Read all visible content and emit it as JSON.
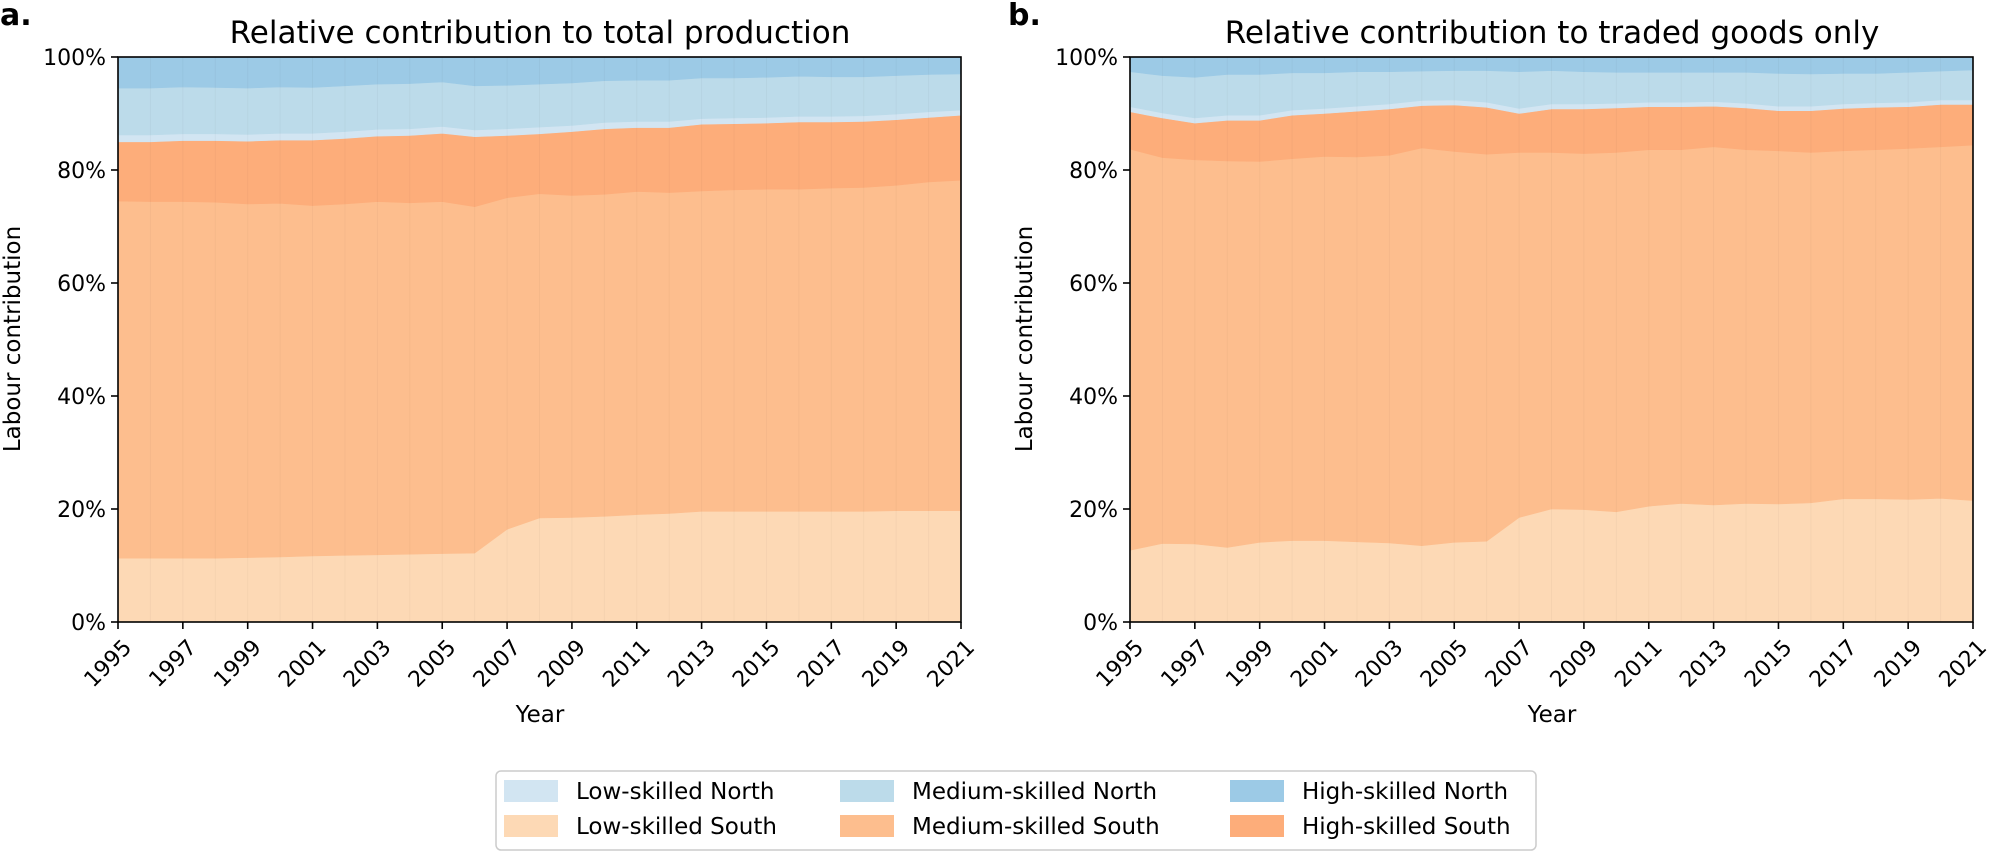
{
  "chart_data": [
    {
      "type": "area",
      "stacked": true,
      "panel_label": "a.",
      "title": "Relative contribution to total production",
      "xlabel": "Year",
      "ylabel": "Labour contribution",
      "xlim": [
        1995,
        2021
      ],
      "ylim": [
        0,
        100
      ],
      "y_unit": "%",
      "x_ticks": [
        "1995",
        "1997",
        "1999",
        "2001",
        "2003",
        "2005",
        "2007",
        "2009",
        "2011",
        "2013",
        "2015",
        "2017",
        "2019",
        "2021"
      ],
      "y_ticks": [
        "0%",
        "20%",
        "40%",
        "60%",
        "80%",
        "100%"
      ],
      "grid": false,
      "x": [
        1995,
        1996,
        1997,
        1998,
        1999,
        2000,
        2001,
        2002,
        2003,
        2004,
        2005,
        2006,
        2007,
        2008,
        2009,
        2010,
        2011,
        2012,
        2013,
        2014,
        2015,
        2016,
        2017,
        2018,
        2019,
        2020,
        2021
      ],
      "series": [
        {
          "name": "Low-skilled South",
          "color": "#fdd9b5",
          "values": [
            11.3,
            11.3,
            11.3,
            11.3,
            11.4,
            11.5,
            11.7,
            11.8,
            11.9,
            12.0,
            12.1,
            12.2,
            16.4,
            18.4,
            18.5,
            18.7,
            19.0,
            19.2,
            19.6,
            19.6,
            19.6,
            19.6,
            19.6,
            19.6,
            19.7,
            19.7,
            19.7
          ]
        },
        {
          "name": "Medium-skilled South",
          "color": "#fdbe8e",
          "values": [
            63.2,
            63.1,
            63.1,
            63.0,
            62.6,
            62.6,
            62.0,
            62.2,
            62.5,
            62.2,
            62.3,
            61.3,
            58.7,
            57.4,
            57.0,
            57.0,
            57.2,
            56.8,
            56.7,
            56.9,
            57.0,
            57.0,
            57.2,
            57.3,
            57.6,
            58.2,
            58.5
          ]
        },
        {
          "name": "High-skilled South",
          "color": "#fdad7a",
          "values": [
            10.5,
            10.6,
            10.8,
            10.9,
            11.1,
            11.2,
            11.6,
            11.6,
            11.6,
            11.9,
            12.1,
            12.4,
            11.0,
            10.6,
            11.3,
            11.6,
            11.3,
            11.5,
            11.8,
            11.7,
            11.7,
            11.9,
            11.7,
            11.7,
            11.6,
            11.4,
            11.5
          ]
        },
        {
          "name": "Low-skilled North",
          "color": "#d2e5f2",
          "values": [
            1.2,
            1.2,
            1.2,
            1.2,
            1.2,
            1.2,
            1.2,
            1.2,
            1.2,
            1.2,
            1.2,
            1.2,
            1.2,
            1.2,
            1.1,
            1.1,
            1.1,
            1.1,
            1.0,
            1.0,
            1.0,
            1.0,
            1.0,
            1.0,
            1.0,
            1.0,
            0.9
          ]
        },
        {
          "name": "Medium-skilled North",
          "color": "#bcdbea",
          "values": [
            8.3,
            8.3,
            8.3,
            8.2,
            8.2,
            8.2,
            8.1,
            8.1,
            8.0,
            8.0,
            7.9,
            7.8,
            7.7,
            7.6,
            7.5,
            7.4,
            7.3,
            7.3,
            7.2,
            7.1,
            7.1,
            7.1,
            7.0,
            6.9,
            6.8,
            6.6,
            6.4
          ]
        },
        {
          "name": "High-skilled North",
          "color": "#9ccae6",
          "values": [
            5.5,
            5.5,
            5.3,
            5.4,
            5.5,
            5.3,
            5.4,
            5.1,
            4.8,
            4.7,
            4.4,
            5.1,
            5.0,
            4.8,
            4.6,
            4.2,
            4.1,
            4.1,
            3.7,
            3.7,
            3.6,
            3.4,
            3.5,
            3.5,
            3.3,
            3.1,
            3.0
          ]
        }
      ]
    },
    {
      "type": "area",
      "stacked": true,
      "panel_label": "b.",
      "title": "Relative contribution to traded goods only",
      "xlabel": "Year",
      "ylabel": "Labour contribution",
      "xlim": [
        1995,
        2021
      ],
      "ylim": [
        0,
        100
      ],
      "y_unit": "%",
      "x_ticks": [
        "1995",
        "1997",
        "1999",
        "2001",
        "2003",
        "2005",
        "2007",
        "2009",
        "2011",
        "2013",
        "2015",
        "2017",
        "2019",
        "2021"
      ],
      "y_ticks": [
        "0%",
        "20%",
        "40%",
        "60%",
        "80%",
        "100%"
      ],
      "grid": false,
      "x": [
        1995,
        1996,
        1997,
        1998,
        1999,
        2000,
        2001,
        2002,
        2003,
        2004,
        2005,
        2006,
        2007,
        2008,
        2009,
        2010,
        2011,
        2012,
        2013,
        2014,
        2015,
        2016,
        2017,
        2018,
        2019,
        2020,
        2021
      ],
      "series": [
        {
          "name": "Low-skilled South",
          "color": "#fdd9b5",
          "values": [
            12.7,
            13.9,
            13.8,
            13.2,
            14.1,
            14.4,
            14.4,
            14.2,
            14.0,
            13.5,
            14.1,
            14.3,
            18.5,
            20.0,
            19.9,
            19.5,
            20.5,
            21.0,
            20.7,
            21.0,
            20.9,
            21.1,
            21.8,
            21.8,
            21.7,
            21.9,
            21.5
          ]
        },
        {
          "name": "Medium-skilled South",
          "color": "#fdbe8e",
          "values": [
            71.0,
            68.3,
            68.0,
            68.4,
            67.4,
            67.6,
            68.0,
            68.1,
            68.6,
            70.4,
            69.2,
            68.5,
            64.6,
            63.1,
            63.0,
            63.6,
            63.1,
            62.6,
            63.4,
            62.6,
            62.5,
            62.0,
            61.6,
            61.8,
            62.1,
            62.2,
            62.9
          ]
        },
        {
          "name": "High-skilled South",
          "color": "#fdad7a",
          "values": [
            6.6,
            7.0,
            6.5,
            7.2,
            7.3,
            7.7,
            7.6,
            8.1,
            8.2,
            7.5,
            8.2,
            8.3,
            6.9,
            7.7,
            7.9,
            7.9,
            7.6,
            7.6,
            7.2,
            7.4,
            7.1,
            7.4,
            7.5,
            7.5,
            7.4,
            7.5,
            7.2
          ]
        },
        {
          "name": "Low-skilled North",
          "color": "#d2e5f2",
          "values": [
            0.9,
            0.9,
            0.9,
            0.9,
            0.9,
            0.9,
            0.9,
            0.9,
            0.9,
            0.9,
            0.9,
            0.9,
            0.9,
            0.9,
            0.9,
            0.8,
            0.8,
            0.8,
            0.8,
            0.8,
            0.8,
            0.8,
            0.8,
            0.8,
            0.8,
            0.8,
            0.8
          ]
        },
        {
          "name": "Medium-skilled North",
          "color": "#bcdbea",
          "values": [
            6.2,
            6.6,
            7.2,
            7.2,
            7.2,
            6.6,
            6.3,
            6.1,
            5.7,
            5.2,
            5.2,
            5.6,
            6.5,
            5.9,
            5.7,
            5.5,
            5.3,
            5.3,
            5.2,
            5.5,
            5.8,
            5.7,
            5.4,
            5.2,
            5.3,
            5.1,
            5.3
          ]
        },
        {
          "name": "High-skilled North",
          "color": "#9ccae6",
          "values": [
            2.6,
            3.3,
            3.6,
            3.1,
            3.1,
            2.8,
            2.8,
            2.6,
            2.6,
            2.5,
            2.4,
            2.4,
            2.6,
            2.4,
            2.6,
            2.7,
            2.7,
            2.7,
            2.7,
            2.7,
            2.9,
            3.0,
            2.9,
            2.9,
            2.7,
            2.5,
            2.3
          ]
        }
      ]
    }
  ],
  "legend": {
    "placement": "bottom-center",
    "ncol": 3,
    "entries": [
      {
        "label": "Low-skilled North",
        "color": "#d2e5f2"
      },
      {
        "label": "Medium-skilled North",
        "color": "#bcdbea"
      },
      {
        "label": "High-skilled North",
        "color": "#9ccae6"
      },
      {
        "label": "Low-skilled South",
        "color": "#fdd9b5"
      },
      {
        "label": "Medium-skilled South",
        "color": "#fdbe8e"
      },
      {
        "label": "High-skilled South",
        "color": "#fdad7a"
      }
    ]
  }
}
